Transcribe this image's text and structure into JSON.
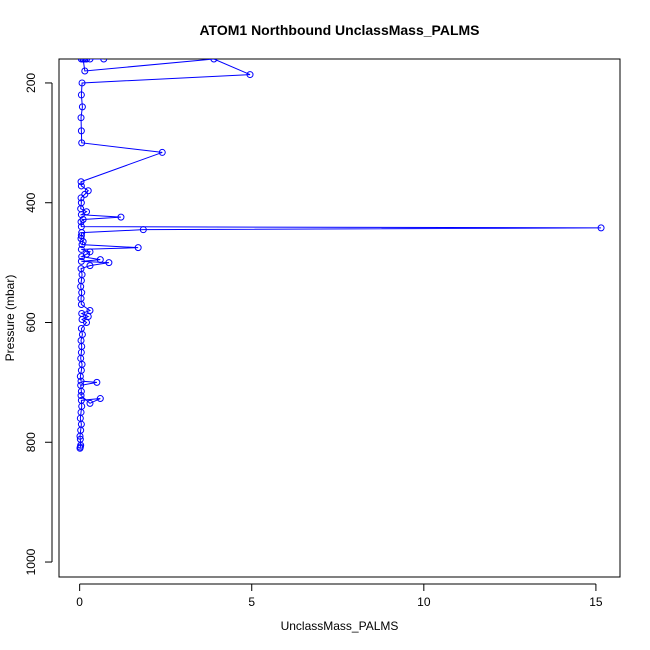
{
  "chart_data": {
    "type": "line",
    "title": "ATOM1 Northbound UnclassMass_PALMS",
    "xlabel": "UnclassMass_PALMS",
    "ylabel": "Pressure (mbar)",
    "xlim": [
      -0.6,
      15.7
    ],
    "ylim": [
      1025,
      160
    ],
    "y_reversed": true,
    "x_ticks": [
      0,
      5,
      10,
      15
    ],
    "y_ticks": [
      200,
      400,
      600,
      800,
      1000
    ],
    "grid": false,
    "series_color": "#0000ff",
    "series": [
      {
        "marker": "open-circle",
        "points": [
          [
            0.02,
            808
          ],
          [
            0.01,
            810
          ],
          [
            0.03,
            805
          ],
          [
            0.02,
            795
          ],
          [
            0.01,
            790
          ],
          [
            0.03,
            780
          ],
          [
            0.05,
            770
          ],
          [
            0.02,
            760
          ],
          [
            0.04,
            750
          ],
          [
            0.06,
            740
          ],
          [
            0.05,
            730
          ],
          [
            0.6,
            727
          ],
          [
            0.3,
            735
          ],
          [
            0.04,
            722
          ],
          [
            0.05,
            715
          ],
          [
            0.03,
            705
          ],
          [
            0.5,
            700
          ],
          [
            0.04,
            698
          ],
          [
            0.02,
            690
          ],
          [
            0.05,
            680
          ],
          [
            0.07,
            670
          ],
          [
            0.03,
            660
          ],
          [
            0.05,
            650
          ],
          [
            0.06,
            640
          ],
          [
            0.04,
            630
          ],
          [
            0.08,
            620
          ],
          [
            0.05,
            610
          ],
          [
            0.2,
            600
          ],
          [
            0.07,
            595
          ],
          [
            0.25,
            590
          ],
          [
            0.06,
            585
          ],
          [
            0.3,
            580
          ],
          [
            0.05,
            570
          ],
          [
            0.04,
            560
          ],
          [
            0.06,
            550
          ],
          [
            0.03,
            540
          ],
          [
            0.05,
            530
          ],
          [
            0.07,
            520
          ],
          [
            0.04,
            510
          ],
          [
            0.3,
            505
          ],
          [
            0.85,
            500
          ],
          [
            0.05,
            498
          ],
          [
            0.6,
            495
          ],
          [
            0.06,
            490
          ],
          [
            0.2,
            486
          ],
          [
            0.3,
            482
          ],
          [
            0.05,
            478
          ],
          [
            1.7,
            475
          ],
          [
            0.07,
            470
          ],
          [
            0.1,
            465
          ],
          [
            0.04,
            460
          ],
          [
            0.05,
            455
          ],
          [
            0.06,
            450
          ],
          [
            1.85,
            445
          ],
          [
            15.15,
            442
          ],
          [
            0.05,
            440
          ],
          [
            0.04,
            432
          ],
          [
            0.1,
            428
          ],
          [
            1.2,
            424
          ],
          [
            0.05,
            420
          ],
          [
            0.2,
            415
          ],
          [
            0.03,
            410
          ],
          [
            0.05,
            400
          ],
          [
            0.04,
            392
          ],
          [
            0.15,
            386
          ],
          [
            0.25,
            380
          ],
          [
            0.05,
            372
          ],
          [
            0.04,
            365
          ],
          [
            2.4,
            316
          ],
          [
            0.06,
            300
          ],
          [
            0.05,
            280
          ],
          [
            0.04,
            258
          ],
          [
            0.08,
            240
          ],
          [
            0.05,
            220
          ],
          [
            0.07,
            200
          ],
          [
            4.95,
            186
          ],
          [
            3.9,
            160
          ],
          [
            0.15,
            180
          ],
          [
            0.1,
            160
          ],
          [
            0.2,
            160
          ],
          [
            0.05,
            160
          ],
          [
            0.7,
            160
          ],
          [
            0.1,
            160
          ],
          [
            0.3,
            160
          ],
          [
            0.15,
            160
          ]
        ]
      }
    ]
  }
}
